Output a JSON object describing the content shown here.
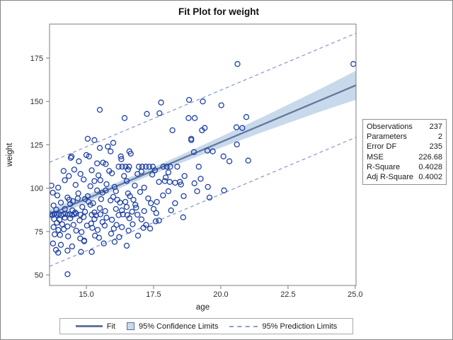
{
  "title": "Fit Plot for weight",
  "axes": {
    "x": {
      "label": "age",
      "tick_labels": [
        "15.0",
        "17.5",
        "20.0",
        "22.5",
        "25.0"
      ],
      "tick_values": [
        15,
        17.5,
        20,
        22.5,
        25
      ],
      "min": 13.63,
      "max": 25.03
    },
    "y": {
      "label": "weight",
      "tick_labels": [
        "50",
        "75",
        "100",
        "125",
        "150",
        "175"
      ],
      "tick_values": [
        50,
        75,
        100,
        125,
        150,
        175
      ],
      "min": 43.9,
      "max": 194.6
    }
  },
  "stats_table": {
    "rows": [
      {
        "label": "Observations",
        "value": "237"
      },
      {
        "label": "Parameters",
        "value": "2"
      },
      {
        "label": "Error DF",
        "value": "235"
      },
      {
        "label": "MSE",
        "value": "226.68"
      },
      {
        "label": "R-Square",
        "value": "0.4028"
      },
      {
        "label": "Adj R-Square",
        "value": "0.4002"
      }
    ]
  },
  "legend": {
    "items": [
      {
        "label": "Fit",
        "swatch": "line"
      },
      {
        "label": "95% Confidence Limits",
        "swatch": "box"
      },
      {
        "label": "95% Prediction Limits",
        "swatch": "dashed"
      }
    ]
  },
  "colors": {
    "marker": "#1e40a3",
    "fit_line": "#64789b",
    "confidence_band": "#c8d9ec",
    "confidence_box_border": "#5b6e96",
    "prediction_line": "#8d9dd1",
    "frame": "#7e7e7e",
    "tick_text": "#2e2e2e",
    "axis_label": "#1a1a1a"
  },
  "chart_data": {
    "type": "scatter",
    "title": "Fit Plot for weight",
    "xlabel": "age",
    "ylabel": "weight",
    "xlim": [
      13.63,
      25.03
    ],
    "ylim": [
      43.9,
      194.6
    ],
    "grid": false,
    "legend_position": "bottom",
    "fit_line": {
      "intercept": -4.1,
      "slope": 6.53
    },
    "prediction_offset": 30.0,
    "confidence_band": {
      "ages": [
        13.63,
        14.5,
        15.5,
        16.5,
        17.0,
        17.5,
        18.5,
        19.5,
        20.5,
        21.5,
        22.5,
        23.5,
        24.5,
        25.03
      ],
      "half_widths": [
        2.8,
        2.4,
        2.1,
        1.95,
        1.95,
        2.0,
        2.3,
        2.8,
        3.5,
        4.3,
        5.3,
        6.3,
        7.6,
        8.4
      ]
    },
    "points": [
      [
        20.62,
        171.6
      ],
      [
        24.93,
        171.6
      ],
      [
        15.5,
        145.2
      ],
      [
        16.42,
        140.4
      ],
      [
        17.25,
        142.8
      ],
      [
        17.78,
        149.4
      ],
      [
        18.82,
        150.9
      ],
      [
        19.33,
        150.0
      ],
      [
        18.8,
        140.4
      ],
      [
        19.03,
        140.4
      ],
      [
        17.72,
        143.2
      ],
      [
        20.95,
        141.0
      ],
      [
        20.02,
        147.8
      ],
      [
        15.05,
        128.5
      ],
      [
        15.3,
        127.7
      ],
      [
        15.5,
        123.2
      ],
      [
        15.8,
        124.0
      ],
      [
        15.9,
        121.2
      ],
      [
        18.2,
        133.4
      ],
      [
        18.9,
        128.5
      ],
      [
        19.3,
        133.4
      ],
      [
        19.4,
        134.7
      ],
      [
        18.9,
        127.7
      ],
      [
        19.7,
        121.2
      ],
      [
        20.58,
        135.1
      ],
      [
        16.6,
        121.2
      ],
      [
        20.8,
        134.7
      ],
      [
        20.6,
        125.2
      ],
      [
        16.0,
        126.1
      ],
      [
        14.42,
        117.5
      ],
      [
        14.45,
        118.3
      ],
      [
        14.72,
        115.5
      ],
      [
        15.0,
        119.1
      ],
      [
        15.1,
        118.3
      ],
      [
        15.4,
        114.3
      ],
      [
        15.62,
        114.7
      ],
      [
        15.72,
        113.9
      ],
      [
        16.28,
        118.3
      ],
      [
        16.3,
        116.7
      ],
      [
        16.65,
        119.9
      ],
      [
        19.0,
        120.8
      ],
      [
        19.5,
        121.6
      ],
      [
        20.1,
        118.3
      ],
      [
        20.32,
        115.5
      ],
      [
        21.02,
        115.9
      ],
      [
        16.2,
        112.4
      ],
      [
        16.33,
        112.4
      ],
      [
        16.46,
        112.4
      ],
      [
        16.59,
        112.4
      ],
      [
        16.95,
        112.4
      ],
      [
        17.08,
        112.4
      ],
      [
        17.21,
        112.4
      ],
      [
        17.34,
        112.4
      ],
      [
        17.47,
        112.4
      ],
      [
        17.86,
        112.4
      ],
      [
        17.99,
        112.4
      ],
      [
        18.12,
        112.4
      ],
      [
        18.38,
        112.4
      ],
      [
        19.18,
        112.4
      ],
      [
        13.7,
        101.5
      ],
      [
        14.2,
        104.6
      ],
      [
        14.9,
        105.0
      ],
      [
        15.3,
        104.1
      ],
      [
        15.52,
        104.6
      ],
      [
        16.5,
        104.1
      ],
      [
        17.7,
        103.6
      ],
      [
        17.92,
        104.1
      ],
      [
        18.1,
        103.6
      ],
      [
        18.3,
        103.1
      ],
      [
        18.48,
        103.6
      ],
      [
        18.52,
        102.1
      ],
      [
        19.02,
        102.8
      ],
      [
        19.52,
        100.7
      ],
      [
        13.95,
        100.3
      ],
      [
        14.6,
        101.9
      ],
      [
        15.15,
        101.1
      ],
      [
        15.75,
        102.3
      ],
      [
        16.05,
        100.7
      ],
      [
        16.8,
        101.5
      ],
      [
        17.15,
        100.3
      ],
      [
        14.35,
        107.0
      ],
      [
        14.78,
        108.2
      ],
      [
        15.45,
        107.4
      ],
      [
        15.95,
        108.6
      ],
      [
        16.4,
        107.0
      ],
      [
        16.9,
        108.2
      ],
      [
        17.45,
        107.8
      ],
      [
        17.95,
        106.2
      ],
      [
        18.65,
        107.0
      ],
      [
        15.2,
        110.3
      ],
      [
        15.85,
        109.9
      ],
      [
        16.55,
        110.7
      ],
      [
        17.05,
        109.5
      ],
      [
        17.55,
        110.3
      ],
      [
        18.05,
        109.1
      ],
      [
        14.15,
        109.9
      ],
      [
        14.55,
        110.7
      ],
      [
        13.75,
        97.4
      ],
      [
        13.92,
        95.8
      ],
      [
        14.3,
        94.6
      ],
      [
        14.36,
        93.3
      ],
      [
        15.6,
        97.4
      ],
      [
        15.72,
        98.7
      ],
      [
        16.0,
        95.0
      ],
      [
        16.55,
        97.0
      ],
      [
        16.62,
        95.4
      ],
      [
        17.0,
        97.8
      ],
      [
        17.3,
        94.1
      ],
      [
        17.62,
        92.1
      ],
      [
        18.3,
        91.3
      ],
      [
        18.62,
        95.4
      ],
      [
        19.12,
        98.2
      ],
      [
        19.58,
        94.6
      ],
      [
        14.05,
        91.7
      ],
      [
        14.5,
        92.5
      ],
      [
        14.95,
        93.7
      ],
      [
        15.25,
        91.3
      ],
      [
        15.9,
        92.9
      ],
      [
        16.25,
        91.7
      ],
      [
        16.75,
        93.3
      ],
      [
        17.85,
        95.8
      ],
      [
        18.05,
        98.2
      ],
      [
        14.7,
        97.0
      ],
      [
        15.05,
        95.4
      ],
      [
        15.4,
        98.7
      ],
      [
        16.1,
        98.2
      ],
      [
        17.4,
        91.3
      ],
      [
        13.78,
        90.0
      ],
      [
        14.2,
        88.0
      ],
      [
        14.48,
        87.2
      ],
      [
        14.58,
        86.0
      ],
      [
        15.15,
        90.4
      ],
      [
        15.5,
        88.4
      ],
      [
        16.1,
        88.0
      ],
      [
        16.32,
        87.2
      ],
      [
        14.85,
        89.2
      ],
      [
        15.7,
        86.8
      ],
      [
        16.7,
        86.4
      ],
      [
        17.6,
        85.6
      ],
      [
        13.88,
        87.6
      ],
      [
        14.95,
        86.4
      ],
      [
        15.3,
        86.0
      ],
      [
        16.5,
        89.2
      ],
      [
        16.85,
        88.8
      ],
      [
        17.15,
        86.8
      ],
      [
        13.66,
        84.9
      ],
      [
        13.74,
        84.5
      ],
      [
        13.82,
        85.3
      ],
      [
        13.9,
        84.7
      ],
      [
        13.98,
        85.1
      ],
      [
        14.06,
        84.5
      ],
      [
        14.14,
        84.9
      ],
      [
        14.22,
        85.3
      ],
      [
        14.3,
        84.7
      ],
      [
        14.38,
        85.1
      ],
      [
        14.46,
        84.5
      ],
      [
        14.54,
        84.9
      ],
      [
        14.62,
        85.3
      ],
      [
        14.78,
        84.7
      ],
      [
        15.2,
        84.7
      ],
      [
        15.36,
        84.3
      ],
      [
        15.52,
        84.9
      ],
      [
        16.2,
        84.5
      ],
      [
        16.36,
        84.9
      ],
      [
        16.52,
        84.5
      ],
      [
        16.9,
        84.7
      ],
      [
        13.9,
        80.1
      ],
      [
        14.1,
        79.2
      ],
      [
        14.3,
        77.9
      ],
      [
        14.52,
        78.8
      ],
      [
        15.02,
        78.4
      ],
      [
        16.12,
        78.8
      ],
      [
        16.32,
        77.5
      ],
      [
        17.58,
        80.9
      ],
      [
        17.7,
        81.3
      ],
      [
        18.6,
        83.2
      ],
      [
        13.8,
        82.2
      ],
      [
        14.0,
        81.8
      ],
      [
        14.4,
        82.6
      ],
      [
        14.75,
        81.4
      ],
      [
        15.3,
        82.2
      ],
      [
        15.6,
        80.5
      ],
      [
        15.95,
        81.8
      ],
      [
        16.6,
        82.6
      ],
      [
        17.05,
        82.0
      ],
      [
        14.2,
        83.0
      ],
      [
        14.9,
        83.4
      ],
      [
        15.75,
        83.0
      ],
      [
        13.78,
        77.5
      ],
      [
        13.96,
        75.9
      ],
      [
        14.16,
        76.3
      ],
      [
        14.62,
        75.5
      ],
      [
        14.82,
        74.7
      ],
      [
        13.82,
        73.4
      ],
      [
        14.02,
        73.0
      ],
      [
        14.32,
        72.2
      ],
      [
        15.22,
        77.1
      ],
      [
        15.42,
        75.9
      ],
      [
        15.32,
        72.6
      ],
      [
        15.47,
        71.4
      ],
      [
        14.77,
        71.0
      ],
      [
        16.57,
        75.5
      ],
      [
        17.12,
        77.1
      ],
      [
        17.37,
        76.7
      ],
      [
        16.22,
        71.8
      ],
      [
        14.92,
        69.8
      ],
      [
        15.92,
        73.8
      ],
      [
        16.92,
        72.6
      ],
      [
        13.87,
        64.4
      ],
      [
        14.47,
        66.4
      ],
      [
        14.8,
        63.2
      ],
      [
        15.2,
        63.2
      ],
      [
        16.5,
        66.8
      ],
      [
        13.95,
        62.8
      ],
      [
        14.92,
        69.4
      ],
      [
        13.76,
        68.1
      ],
      [
        14.05,
        67.3
      ],
      [
        15.65,
        68.1
      ],
      [
        14.3,
        64.0
      ],
      [
        16.05,
        69.0
      ],
      [
        14.3,
        50.4
      ],
      [
        20.12,
        98.7
      ],
      [
        19.25,
        105.4
      ],
      [
        14.68,
        94.1
      ],
      [
        15.08,
        92.1
      ],
      [
        15.55,
        93.7
      ],
      [
        16.15,
        93.3
      ],
      [
        16.45,
        92.1
      ],
      [
        15.18,
        79.6
      ],
      [
        15.68,
        78.4
      ],
      [
        16.02,
        76.7
      ],
      [
        16.72,
        79.2
      ],
      [
        17.22,
        78.8
      ],
      [
        14.4,
        90.8
      ],
      [
        16.82,
        90.4
      ],
      [
        17.5,
        88.0
      ],
      [
        18.15,
        87.2
      ]
    ]
  }
}
